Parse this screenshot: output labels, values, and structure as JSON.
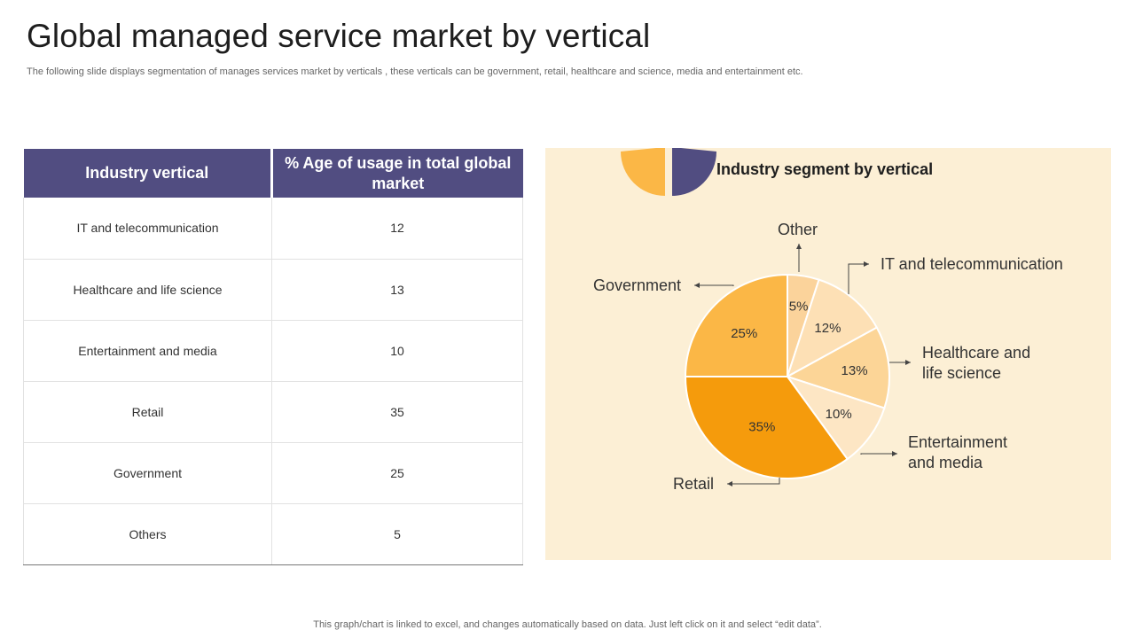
{
  "page": {
    "title": "Global managed service market by vertical",
    "subtitle": "The following slide displays segmentation of manages services market by verticals , these verticals can be government, retail, healthcare and science, media and entertainment etc.",
    "footer": "This graph/chart is linked to excel, and changes automatically based on data. Just left click on it and select “edit data”."
  },
  "table": {
    "headers": [
      "Industry vertical",
      "% Age of usage in total global market"
    ],
    "rows": [
      [
        "IT and telecommunication",
        "12"
      ],
      [
        "Healthcare and life science",
        "13"
      ],
      [
        "Entertainment and media",
        "10"
      ],
      [
        "Retail",
        "35"
      ],
      [
        "Government",
        "25"
      ],
      [
        "Others",
        "5"
      ]
    ]
  },
  "colors": {
    "header": "#514d81",
    "panel": "#fcefd5",
    "Other": "#fbd39b",
    "IT and telecommunication": "#fde0b5",
    "Healthcare and life science": "#fcd597",
    "Entertainment and media": "#fde6c4",
    "Retail": "#f59b0c",
    "Government": "#fbb746",
    "icon_left": "#fbb746",
    "icon_right": "#514d81"
  },
  "chart_data": {
    "type": "pie",
    "title": "Industry segment by vertical",
    "slices": [
      {
        "label": "Other",
        "value": 5,
        "value_label": "5%"
      },
      {
        "label": "IT and telecommunication",
        "value": 12,
        "value_label": "12%"
      },
      {
        "label": "Healthcare and life science",
        "value": 13,
        "value_label": "13%"
      },
      {
        "label": "Entertainment and media",
        "value": 10,
        "value_label": "10%"
      },
      {
        "label": "Retail",
        "value": 35,
        "value_label": "35%"
      },
      {
        "label": "Government",
        "value": 25,
        "value_label": "25%"
      }
    ],
    "callout_lines": {
      "Other": [
        "Other"
      ],
      "IT and telecommunication": [
        "IT and telecommunication"
      ],
      "Healthcare and life science": [
        "Healthcare and",
        "life science"
      ],
      "Entertainment and media": [
        "Entertainment",
        "and media"
      ],
      "Retail": [
        "Retail"
      ],
      "Government": [
        "Government"
      ]
    }
  }
}
